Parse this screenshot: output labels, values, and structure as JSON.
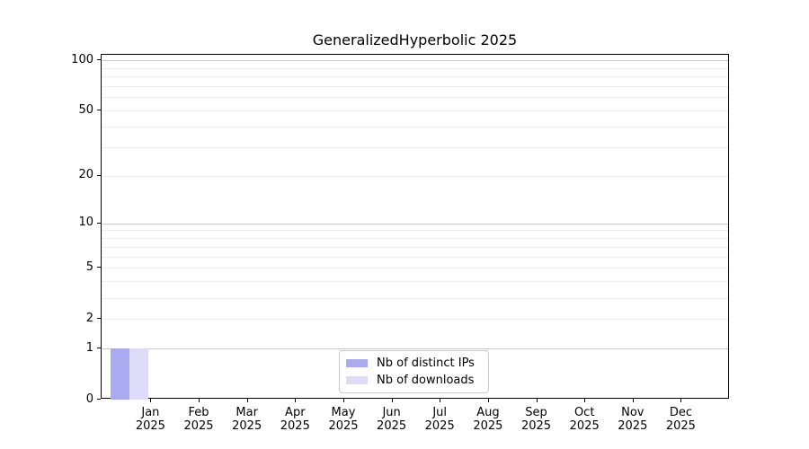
{
  "figure": {
    "title": "GeneralizedHyperbolic 2025"
  },
  "legend": {
    "items": [
      {
        "label": "Nb of distinct IPs",
        "color": "#aaaaf0"
      },
      {
        "label": "Nb of downloads",
        "color": "#dcdcf8"
      }
    ]
  },
  "chart_data": {
    "type": "bar",
    "title": "GeneralizedHyperbolic 2025",
    "categories": [
      "Jan 2025",
      "Feb 2025",
      "Mar 2025",
      "Apr 2025",
      "May 2025",
      "Jun 2025",
      "Jul 2025",
      "Aug 2025",
      "Sep 2025",
      "Oct 2025",
      "Nov 2025",
      "Dec 2025"
    ],
    "series": [
      {
        "name": "Nb of distinct IPs",
        "color": "#aaaaf0",
        "values": [
          1,
          0,
          0,
          0,
          0,
          0,
          0,
          0,
          0,
          0,
          0,
          0
        ]
      },
      {
        "name": "Nb of downloads",
        "color": "#dcdcf8",
        "values": [
          1,
          0,
          0,
          0,
          0,
          0,
          0,
          0,
          0,
          0,
          0,
          0
        ]
      }
    ],
    "y_scale": "log1p",
    "ylim": [
      0,
      110
    ],
    "y_tick_values": [
      0,
      1,
      2,
      5,
      10,
      20,
      50,
      100
    ],
    "y_tick_labels": [
      "0",
      "1",
      "2",
      "5",
      "10",
      "20",
      "50",
      "100"
    ],
    "y_major_gridlines": [
      1,
      10,
      100
    ],
    "y_minor_gridlines": [
      2,
      3,
      4,
      5,
      6,
      7,
      8,
      9,
      20,
      30,
      40,
      50,
      60,
      70,
      80,
      90
    ],
    "grid": "horizontal",
    "legend_position": "bottom-center"
  },
  "colors": {
    "background": "#ffffff",
    "axis": "#000000",
    "text": "#000000",
    "major_grid": "#c8c8c8",
    "minor_grid": "#ececec",
    "legend_border": "#cccccc"
  }
}
